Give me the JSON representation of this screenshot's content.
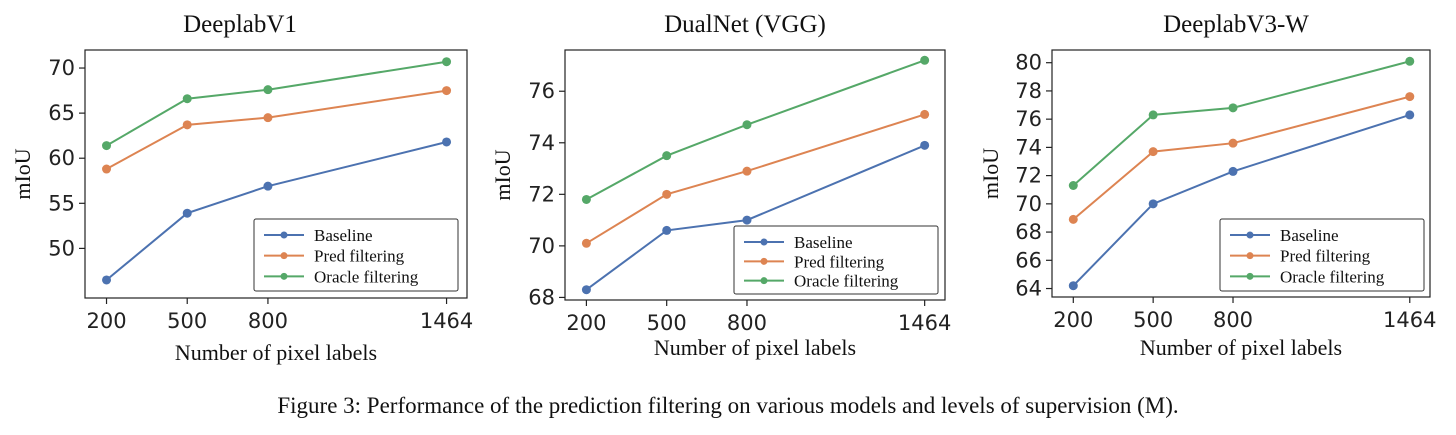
{
  "figure": {
    "caption": "Figure 3: Performance of the prediction filtering on various models and levels of supervision (M)."
  },
  "colors": {
    "baseline": "#4c72b0",
    "pred": "#dd8452",
    "oracle": "#55a868"
  },
  "chart_data": [
    {
      "type": "line",
      "title": "DeeplabV1",
      "xlabel": "Number of pixel labels",
      "ylabel": "mIoU",
      "x": [
        200,
        500,
        800,
        1464
      ],
      "xticks": [
        "200",
        "500",
        "800",
        "1464"
      ],
      "xlim": [
        120,
        1540
      ],
      "ylim": [
        44.5,
        72
      ],
      "yticks": [
        50,
        55,
        60,
        65,
        70
      ],
      "legend": "bottom-right",
      "series": [
        {
          "name": "Baseline",
          "values": [
            46.5,
            53.9,
            56.9,
            61.8
          ]
        },
        {
          "name": "Pred filtering",
          "values": [
            58.8,
            63.7,
            64.5,
            67.5
          ]
        },
        {
          "name": "Oracle filtering",
          "values": [
            61.4,
            66.6,
            67.6,
            70.7
          ]
        }
      ]
    },
    {
      "type": "line",
      "title": "DualNet (VGG)",
      "xlabel": "Number of pixel labels",
      "ylabel": "mIoU",
      "x": [
        200,
        500,
        800,
        1464
      ],
      "xticks": [
        "200",
        "500",
        "800",
        "1464"
      ],
      "xlim": [
        120,
        1540
      ],
      "ylim": [
        67.9,
        77.6
      ],
      "yticks": [
        68,
        70,
        72,
        74,
        76
      ],
      "legend": "bottom-right",
      "series": [
        {
          "name": "Baseline",
          "values": [
            68.3,
            70.6,
            71.0,
            73.9
          ]
        },
        {
          "name": "Pred filtering",
          "values": [
            70.1,
            72.0,
            72.9,
            75.1
          ]
        },
        {
          "name": "Oracle filtering",
          "values": [
            71.8,
            73.5,
            74.7,
            77.2
          ]
        }
      ]
    },
    {
      "type": "line",
      "title": "DeeplabV3-W",
      "xlabel": "Number of pixel labels",
      "ylabel": "mIoU",
      "x": [
        200,
        500,
        800,
        1464
      ],
      "xticks": [
        "200",
        "500",
        "800",
        "1464"
      ],
      "xlim": [
        120,
        1540
      ],
      "ylim": [
        63.4,
        80.9
      ],
      "yticks": [
        64,
        66,
        68,
        70,
        72,
        74,
        76,
        78,
        80
      ],
      "legend": "bottom-right",
      "series": [
        {
          "name": "Baseline",
          "values": [
            64.2,
            70.0,
            72.3,
            76.3
          ]
        },
        {
          "name": "Pred filtering",
          "values": [
            68.9,
            73.7,
            74.3,
            77.6
          ]
        },
        {
          "name": "Oracle filtering",
          "values": [
            71.3,
            76.3,
            76.8,
            80.1
          ]
        }
      ]
    }
  ]
}
